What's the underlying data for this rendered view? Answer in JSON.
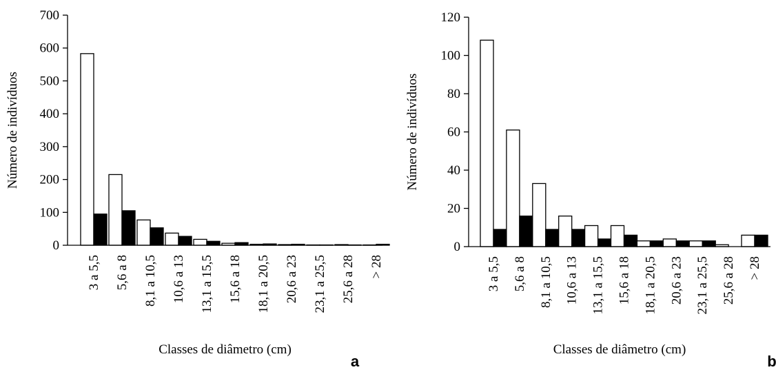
{
  "chart_data": [
    {
      "type": "bar",
      "panel_label": "a",
      "x_label": "Classes de diâmetro (cm)",
      "y_label": "Número de indivíduos",
      "categories": [
        "3 a 5,5",
        "5,6 a 8",
        "8,1 a 10,5",
        "10,6 a 13",
        "13,1 a 15,5",
        "15,6 a 18",
        "18,1 a 20,5",
        "20,6 a 23",
        "23,1 a 25,5",
        "25,6 a 28",
        "> 28"
      ],
      "series": [
        {
          "color": "#ffffff",
          "values": [
            583,
            215,
            77,
            37,
            18,
            6,
            3,
            2,
            1,
            2,
            1
          ]
        },
        {
          "color": "#000000",
          "values": [
            95,
            105,
            53,
            27,
            12,
            8,
            4,
            3,
            1,
            1,
            3
          ]
        }
      ],
      "ylim": [
        0,
        700
      ],
      "yticks": [
        0,
        100,
        200,
        300,
        400,
        500,
        600,
        700
      ]
    },
    {
      "type": "bar",
      "panel_label": "b",
      "x_label": "Classes de diâmetro (cm)",
      "y_label": "Número de indivíduos",
      "categories": [
        "3 a 5,5",
        "5,6 a 8",
        "8,1 a 10,5",
        "10,6 a 13",
        "13,1 a 15,5",
        "15,6 a 18",
        "18,1 a 20,5",
        "20,6 a 23",
        "23,1 a 25,5",
        "25,6 a 28",
        "> 28"
      ],
      "series": [
        {
          "color": "#ffffff",
          "values": [
            108,
            61,
            33,
            16,
            11,
            11,
            3,
            4,
            3,
            1,
            6
          ]
        },
        {
          "color": "#000000",
          "values": [
            9,
            16,
            9,
            9,
            4,
            6,
            3,
            3,
            3,
            0,
            6
          ]
        }
      ],
      "ylim": [
        0,
        120
      ],
      "yticks": [
        0,
        20,
        40,
        60,
        80,
        100,
        120
      ]
    }
  ]
}
